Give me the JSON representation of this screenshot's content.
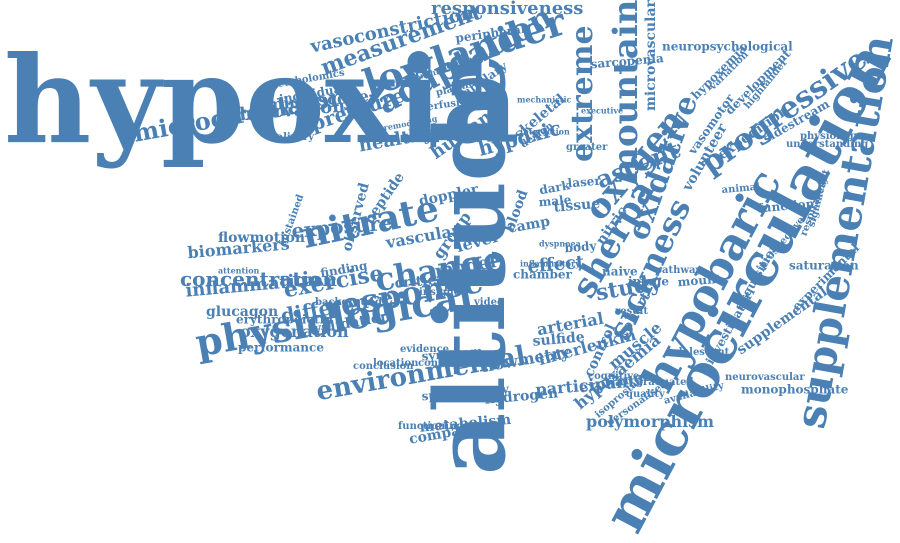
{
  "colors": {
    "word": "#4a80b4",
    "background": "#ffffff"
  },
  "words": [
    "hypoxia",
    "altitude",
    "microcirculation",
    "hypobaric",
    "supplementation",
    "lowlander",
    "nitrate",
    "physiological",
    "response",
    "change",
    "adaptation",
    "environmental",
    "oxygen",
    "sherpa",
    "mountain",
    "microcirculatory",
    "oxidative",
    "sickness",
    "progressive",
    "extreme",
    "concentration",
    "exercise",
    "ascent",
    "study",
    "measurement",
    "vasoconstriction",
    "responsiveness",
    "exposure",
    "difference",
    "inflammation",
    "observational",
    "pressure",
    "human",
    "healthy",
    "microscope",
    "hypoxic",
    "hypoxaemia",
    "polymorphism",
    "flowmetry",
    "interleukin",
    "hydrogen",
    "metabolism",
    "comparison",
    "oxygenation",
    "biomarkers",
    "flowmotion",
    "glucagon",
    "erythropoietin",
    "performance",
    "validation",
    "skeletal",
    "arterial",
    "sulfide",
    "effect",
    "model",
    "participant",
    "exchange",
    "muscle",
    "control",
    "level",
    "group",
    "vascular",
    "critical",
    "doppler",
    "expedition",
    "supplemental",
    "saturation",
    "volunteer",
    "vasomotor",
    "development",
    "hypoxemia",
    "microvascular",
    "neuropsychological",
    "sarcopenia",
    "peripheral",
    "individual",
    "metabolomics",
    "capillary",
    "plasmon",
    "guanosine",
    "perfusion",
    "relationship",
    "design",
    "camp",
    "tissue",
    "blood",
    "nitric",
    "cohort",
    "mount",
    "investigator",
    "acquisition",
    "function",
    "sidestream",
    "neurovascular",
    "monophosphate",
    "spectroscopy",
    "symptom",
    "conduct",
    "evidence",
    "observed",
    "peptide",
    "finding",
    "insight",
    "background",
    "conclusion",
    "cognitive",
    "result",
    "image",
    "personalised",
    "isoprostane",
    "functioning",
    "male",
    "dark",
    "laser",
    "body",
    "naive",
    "animal",
    "variation",
    "experimental",
    "respiratory",
    "physiology",
    "understanding",
    "highlander",
    "prospective",
    "significant",
    "adolescent",
    "availability",
    "graduated",
    "sustained",
    "mechanistic",
    "attention",
    "inflammatory",
    "chamber",
    "field",
    "video",
    "greater",
    "quality",
    "dyspnoea",
    "pathway",
    "salivary",
    "remodelling",
    "executive",
    "interaction",
    "location",
    "treatment"
  ]
}
